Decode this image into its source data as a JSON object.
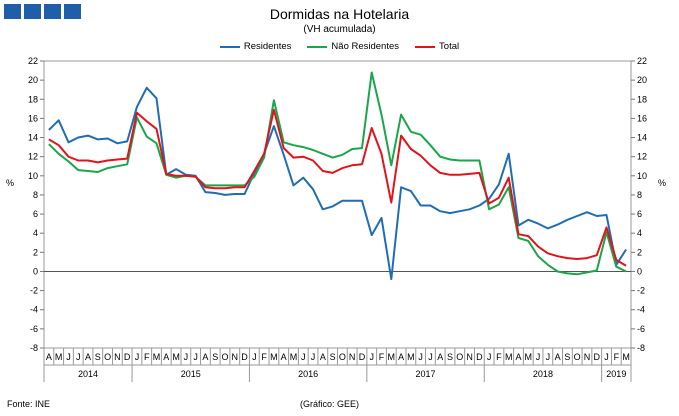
{
  "header": {
    "logo": "GEE logo"
  },
  "footer": {
    "source": "Fonte: INE",
    "credit": "(Gráfico: GEE)"
  },
  "chart_data": {
    "type": "line",
    "title": "Dormidas na Hotelaria",
    "subtitle": "(VH acumulada)",
    "ylabel": "%",
    "ylim": [
      -8,
      22
    ],
    "yticks": [
      -8,
      -6,
      -4,
      -2,
      0,
      2,
      4,
      6,
      8,
      10,
      12,
      14,
      16,
      18,
      20,
      22
    ],
    "grid": false,
    "legend_position": "top-center",
    "month_labels": [
      "A",
      "M",
      "J",
      "J",
      "A",
      "S",
      "O",
      "N",
      "D",
      "J",
      "F",
      "M",
      "A",
      "M",
      "J",
      "J",
      "A",
      "S",
      "O",
      "N",
      "D",
      "J",
      "F",
      "M",
      "A",
      "M",
      "J",
      "J",
      "A",
      "S",
      "O",
      "N",
      "D",
      "J",
      "F",
      "M",
      "A",
      "M",
      "J",
      "J",
      "A",
      "S",
      "O",
      "N",
      "D",
      "J",
      "F",
      "M",
      "A",
      "M",
      "J",
      "J",
      "A",
      "S",
      "O",
      "N",
      "D",
      "J",
      "F",
      "M"
    ],
    "years": [
      {
        "label": "2014",
        "start": 0,
        "end": 8
      },
      {
        "label": "2015",
        "start": 9,
        "end": 20
      },
      {
        "label": "2016",
        "start": 21,
        "end": 32
      },
      {
        "label": "2017",
        "start": 33,
        "end": 44
      },
      {
        "label": "2018",
        "start": 45,
        "end": 56
      },
      {
        "label": "2019",
        "start": 57,
        "end": 59
      }
    ],
    "series": [
      {
        "name": "Residentes",
        "color": "#1f6eb5",
        "values": [
          14.8,
          15.8,
          13.5,
          14,
          14.2,
          13.8,
          13.9,
          13.4,
          13.6,
          17.2,
          19.2,
          18.1,
          10.1,
          10.7,
          10.1,
          10,
          8.3,
          8.2,
          8,
          8.1,
          8.1,
          10.3,
          12.3,
          15.2,
          12.2,
          9,
          9.8,
          8.6,
          6.5,
          6.8,
          7.4,
          7.4,
          7.4,
          3.8,
          5.6,
          -0.8,
          8.8,
          8.4,
          6.9,
          6.9,
          6.3,
          6.1,
          6.3,
          6.5,
          6.9,
          7.6,
          9.1,
          12.3,
          4.8,
          5.4,
          5,
          4.5,
          4.9,
          5.4,
          5.8,
          6.2,
          5.8,
          5.9,
          0.7,
          2.3
        ]
      },
      {
        "name": "Não Residentes",
        "color": "#1aa64a",
        "values": [
          13.3,
          12.3,
          11.5,
          10.6,
          10.5,
          10.4,
          10.8,
          11,
          11.2,
          16.1,
          14.1,
          13.4,
          10.1,
          9.8,
          10,
          9.9,
          9,
          9,
          9,
          9,
          9,
          9.9,
          11.9,
          17.9,
          13.5,
          13.2,
          13,
          12.7,
          12.3,
          11.9,
          12.2,
          12.8,
          12.9,
          20.8,
          16.4,
          11.1,
          16.4,
          14.6,
          14.3,
          13.2,
          12,
          11.7,
          11.6,
          11.6,
          11.6,
          6.5,
          7,
          8.8,
          3.5,
          3.2,
          1.6,
          0.7,
          0,
          -0.2,
          -0.3,
          -0.1,
          0.1,
          4.1,
          0.5,
          0
        ]
      },
      {
        "name": "Total",
        "color": "#e3131c",
        "values": [
          13.8,
          13.2,
          12,
          11.6,
          11.6,
          11.4,
          11.6,
          11.7,
          11.8,
          16.6,
          15.7,
          14.9,
          10.2,
          10,
          10,
          9.9,
          8.8,
          8.7,
          8.7,
          8.8,
          8.8,
          10.5,
          12.3,
          16.9,
          12.9,
          11.9,
          12,
          11.6,
          10.5,
          10.3,
          10.8,
          11.1,
          11.2,
          15,
          12.3,
          7.2,
          14.2,
          12.8,
          12.1,
          11.1,
          10.3,
          10.1,
          10.1,
          10.2,
          10.3,
          7.1,
          7.7,
          9.8,
          3.9,
          3.7,
          2.6,
          1.9,
          1.6,
          1.4,
          1.3,
          1.4,
          1.7,
          4.6,
          1.2,
          0.6
        ]
      }
    ]
  }
}
